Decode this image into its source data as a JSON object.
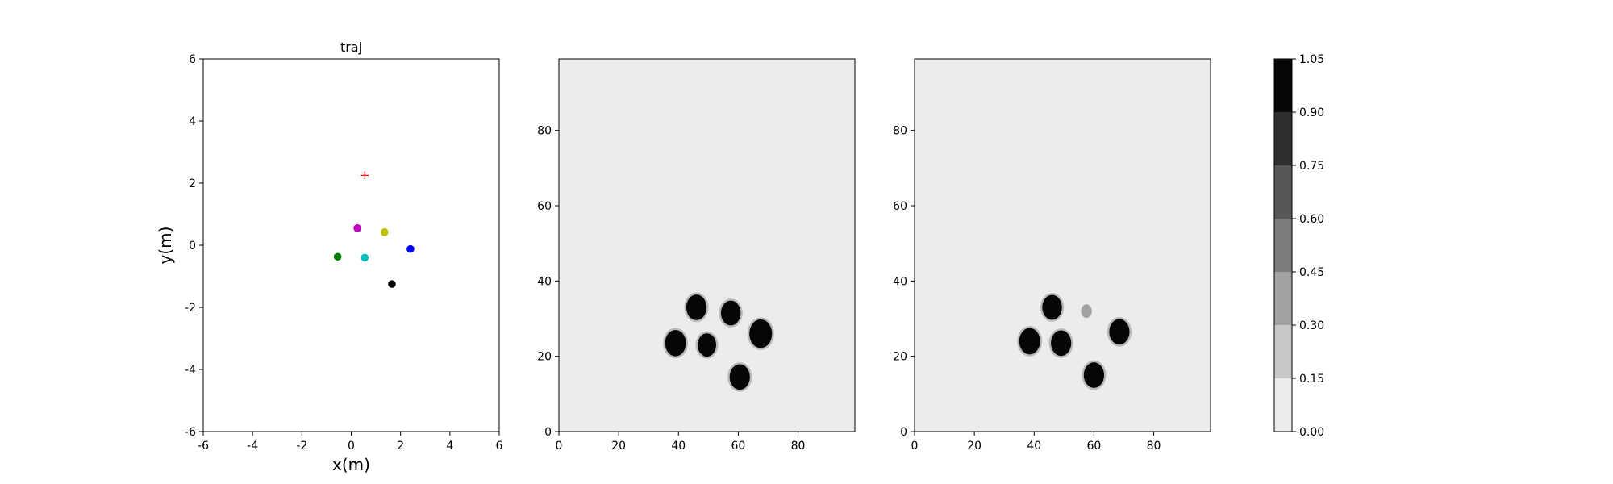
{
  "colors": {
    "panel_bg": "#ececec",
    "blob": "#060606",
    "axis": "#000000",
    "target_marker": "#ff0000"
  },
  "chart_data": [
    {
      "type": "scatter",
      "title": "traj",
      "xlabel": "x(m)",
      "ylabel": "y(m)",
      "xlim": [
        -6,
        6
      ],
      "ylim": [
        -6,
        6
      ],
      "xticks": [
        -6,
        -4,
        -2,
        0,
        2,
        4,
        6
      ],
      "yticks": [
        -6,
        -4,
        -2,
        0,
        2,
        4,
        6
      ],
      "grid": false,
      "target": {
        "x": 0.55,
        "y": 2.25,
        "marker": "plus",
        "color": "#ff0000"
      },
      "points": [
        {
          "x": 0.25,
          "y": 0.55,
          "color": "#bf00bf"
        },
        {
          "x": 1.35,
          "y": 0.42,
          "color": "#bfbf00"
        },
        {
          "x": 2.4,
          "y": -0.12,
          "color": "#0000ff"
        },
        {
          "x": -0.55,
          "y": -0.37,
          "color": "#008000"
        },
        {
          "x": 0.55,
          "y": -0.4,
          "color": "#00bfbf"
        },
        {
          "x": 1.65,
          "y": -1.25,
          "color": "#000000"
        }
      ]
    },
    {
      "type": "heatmap",
      "xlim": [
        0,
        99
      ],
      "ylim": [
        0,
        99
      ],
      "xticks": [
        0,
        20,
        40,
        60,
        80
      ],
      "yticks": [
        0,
        20,
        40,
        60,
        80
      ],
      "blobs": [
        {
          "x": 46,
          "y": 33,
          "r": 3.4,
          "value": 1.0
        },
        {
          "x": 57.5,
          "y": 31.5,
          "r": 3.3,
          "value": 1.0
        },
        {
          "x": 39,
          "y": 23.5,
          "r": 3.5,
          "value": 1.0
        },
        {
          "x": 49.5,
          "y": 23,
          "r": 3.1,
          "value": 1.0
        },
        {
          "x": 67.5,
          "y": 26,
          "r": 3.8,
          "value": 1.0
        },
        {
          "x": 60.5,
          "y": 14.5,
          "r": 3.4,
          "value": 1.0
        }
      ]
    },
    {
      "type": "heatmap",
      "xlim": [
        0,
        99
      ],
      "ylim": [
        0,
        99
      ],
      "xticks": [
        0,
        20,
        40,
        60,
        80
      ],
      "yticks": [
        0,
        20,
        40,
        60,
        80
      ],
      "blobs": [
        {
          "x": 46,
          "y": 33,
          "r": 3.3,
          "value": 1.0
        },
        {
          "x": 38.5,
          "y": 24,
          "r": 3.5,
          "value": 1.0
        },
        {
          "x": 49,
          "y": 23.5,
          "r": 3.4,
          "value": 1.0
        },
        {
          "x": 68.5,
          "y": 26.5,
          "r": 3.4,
          "value": 1.0
        },
        {
          "x": 60,
          "y": 15,
          "r": 3.4,
          "value": 1.0
        },
        {
          "x": 57.5,
          "y": 32,
          "r": 1.8,
          "value": 0.3
        }
      ]
    },
    {
      "type": "colorbar",
      "levels": [
        0.0,
        0.15,
        0.3,
        0.45,
        0.6,
        0.75,
        0.9,
        1.05
      ],
      "tick_labels": [
        "0.00",
        "0.15",
        "0.30",
        "0.45",
        "0.60",
        "0.75",
        "0.90",
        "1.05"
      ],
      "band_colors": [
        "#ececec",
        "#c8c8c8",
        "#a2a2a2",
        "#7c7c7c",
        "#575757",
        "#2f2f2f",
        "#060606"
      ]
    }
  ]
}
